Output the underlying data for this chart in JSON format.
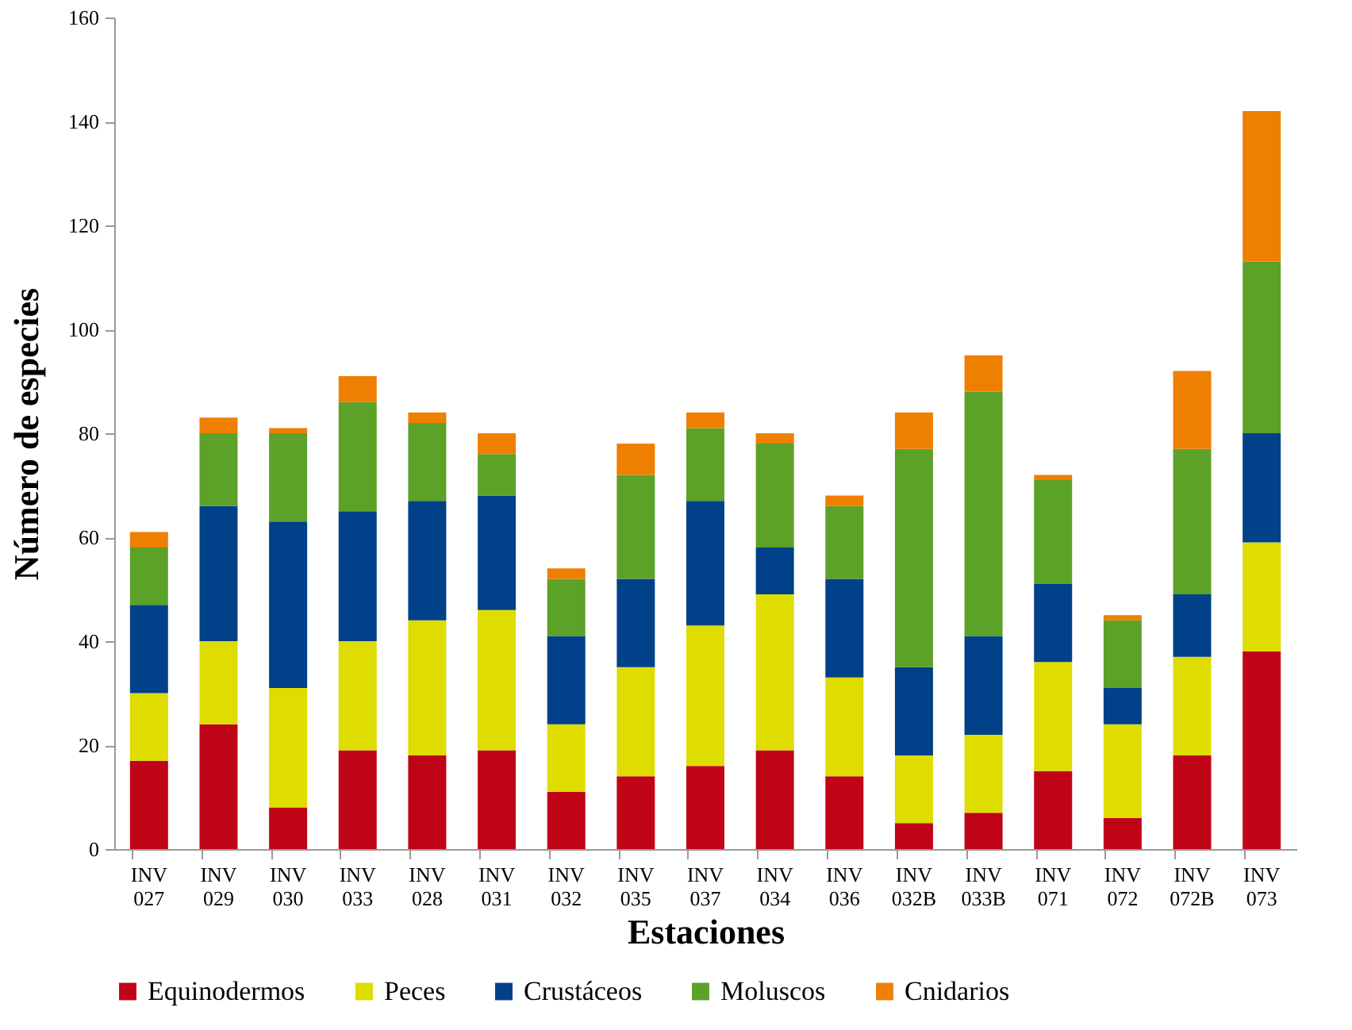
{
  "chart_data": {
    "type": "bar",
    "stacked": true,
    "xlabel": "Estaciones",
    "ylabel": "Número de especies",
    "categories": [
      "INV 027",
      "INV 029",
      "INV 030",
      "INV 033",
      "INV 028",
      "INV 031",
      "INV 032",
      "INV 035",
      "INV 037",
      "INV 034",
      "INV 036",
      "INV 032B",
      "INV 033B",
      "INV 071",
      "INV 072",
      "INV 072B",
      "INV 073"
    ],
    "series": [
      {
        "name": "Equinodermos",
        "color": "#c00418",
        "values": [
          17,
          24,
          8,
          19,
          18,
          19,
          11,
          14,
          16,
          19,
          14,
          5,
          7,
          15,
          6,
          18,
          38
        ]
      },
      {
        "name": "Peces",
        "color": "#dfdc00",
        "values": [
          13,
          16,
          23,
          21,
          26,
          27,
          13,
          21,
          27,
          30,
          19,
          13,
          15,
          21,
          18,
          19,
          21
        ]
      },
      {
        "name": "Crustáceos",
        "color": "#00418a",
        "values": [
          17,
          26,
          32,
          25,
          23,
          22,
          17,
          17,
          24,
          9,
          19,
          17,
          19,
          15,
          7,
          12,
          21
        ]
      },
      {
        "name": "Moluscos",
        "color": "#5ca128",
        "values": [
          11,
          14,
          17,
          21,
          15,
          8,
          11,
          20,
          14,
          20,
          14,
          42,
          47,
          20,
          13,
          28,
          33
        ]
      },
      {
        "name": "Cnidarios",
        "color": "#ef7f00",
        "values": [
          3,
          3,
          1,
          5,
          2,
          4,
          2,
          6,
          3,
          2,
          2,
          7,
          7,
          1,
          1,
          15,
          29
        ]
      }
    ],
    "ylim": [
      0,
      160
    ],
    "yticks": [
      0,
      20,
      40,
      60,
      80,
      100,
      120,
      140,
      160
    ],
    "grid": false,
    "legend": "bottom"
  }
}
